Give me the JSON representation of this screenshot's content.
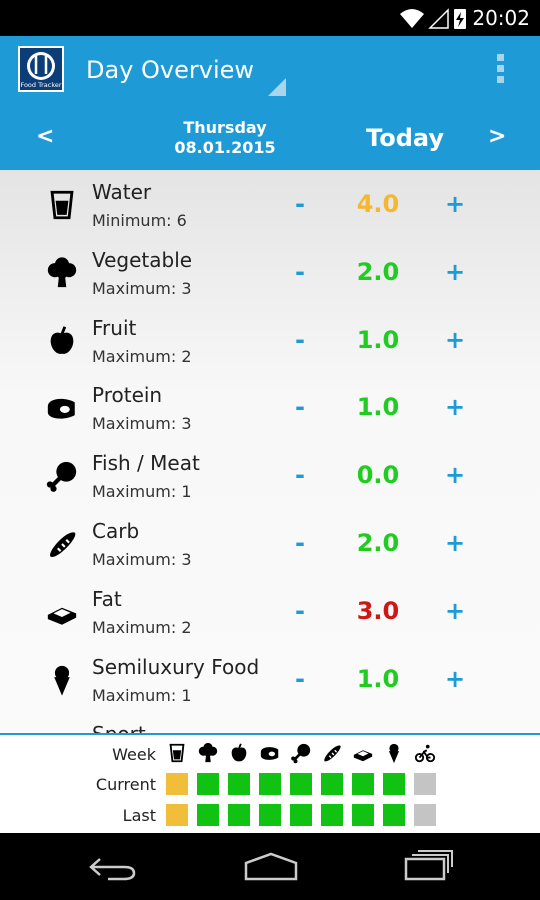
{
  "status_bar": {
    "time": "20:02"
  },
  "app_bar": {
    "title": "Day Overview",
    "logo_text": "Food Tracker"
  },
  "date_nav": {
    "prev": "<",
    "weekday": "Thursday",
    "date": "08.01.2015",
    "label": "Today",
    "next": ">"
  },
  "controls": {
    "minus": "-",
    "plus": "+"
  },
  "items": [
    {
      "name": "Water",
      "limit": "Minimum: 6",
      "value": "4.0",
      "color": "#f5b731"
    },
    {
      "name": "Vegetable",
      "limit": "Maximum: 3",
      "value": "2.0",
      "color": "#1fcc1f"
    },
    {
      "name": "Fruit",
      "limit": "Maximum: 2",
      "value": "1.0",
      "color": "#1fcc1f"
    },
    {
      "name": "Protein",
      "limit": "Maximum: 3",
      "value": "1.0",
      "color": "#1fcc1f"
    },
    {
      "name": "Fish / Meat",
      "limit": "Maximum: 1",
      "value": "0.0",
      "color": "#1fcc1f"
    },
    {
      "name": "Carb",
      "limit": "Maximum: 3",
      "value": "2.0",
      "color": "#1fcc1f"
    },
    {
      "name": "Fat",
      "limit": "Maximum: 2",
      "value": "3.0",
      "color": "#d01515"
    },
    {
      "name": "Semiluxury Food",
      "limit": "Maximum: 1",
      "value": "1.0",
      "color": "#1fcc1f"
    }
  ],
  "partial_item": {
    "name": "Sport"
  },
  "week_panel": {
    "labels": [
      "Week",
      "Current",
      "Last"
    ],
    "current": [
      "#f0be3a",
      "#12c212",
      "#12c212",
      "#12c212",
      "#12c212",
      "#12c212",
      "#12c212",
      "#12c212",
      "#c4c4c4"
    ],
    "last": [
      "#f0be3a",
      "#12c212",
      "#12c212",
      "#12c212",
      "#12c212",
      "#12c212",
      "#12c212",
      "#12c212",
      "#c4c4c4"
    ]
  }
}
